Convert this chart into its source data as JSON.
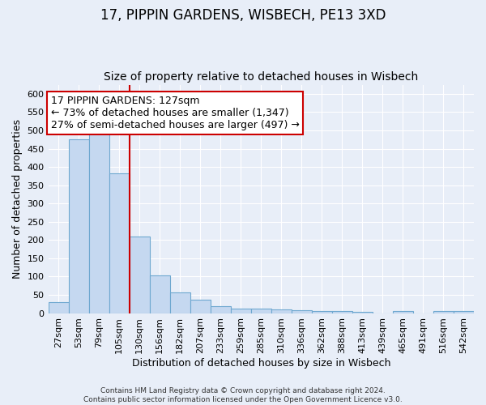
{
  "title_line1": "17, PIPPIN GARDENS, WISBECH, PE13 3XD",
  "title_line2": "Size of property relative to detached houses in Wisbech",
  "xlabel": "Distribution of detached houses by size in Wisbech",
  "ylabel": "Number of detached properties",
  "categories": [
    "27sqm",
    "53sqm",
    "79sqm",
    "105sqm",
    "130sqm",
    "156sqm",
    "182sqm",
    "207sqm",
    "233sqm",
    "259sqm",
    "285sqm",
    "310sqm",
    "336sqm",
    "362sqm",
    "388sqm",
    "413sqm",
    "439sqm",
    "465sqm",
    "491sqm",
    "516sqm",
    "542sqm"
  ],
  "values": [
    30,
    475,
    495,
    383,
    210,
    103,
    57,
    37,
    20,
    13,
    12,
    10,
    8,
    5,
    5,
    4,
    0,
    5,
    0,
    5,
    5
  ],
  "bar_color": "#c5d8f0",
  "bar_edge_color": "#6fa8d0",
  "annotation_box_text_line1": "17 PIPPIN GARDENS: 127sqm",
  "annotation_box_text_line2": "← 73% of detached houses are smaller (1,347)",
  "annotation_box_text_line3": "27% of semi-detached houses are larger (497) →",
  "vline_color": "#cc0000",
  "vline_x": 3.5,
  "ylim": [
    0,
    625
  ],
  "yticks": [
    0,
    50,
    100,
    150,
    200,
    250,
    300,
    350,
    400,
    450,
    500,
    550,
    600
  ],
  "footnote_line1": "Contains HM Land Registry data © Crown copyright and database right 2024.",
  "footnote_line2": "Contains public sector information licensed under the Open Government Licence v3.0.",
  "background_color": "#e8eef8",
  "grid_color": "#ffffff",
  "title_fontsize": 12,
  "subtitle_fontsize": 10,
  "annot_fontsize": 9,
  "tick_fontsize": 8,
  "ylabel_fontsize": 9,
  "xlabel_fontsize": 9
}
